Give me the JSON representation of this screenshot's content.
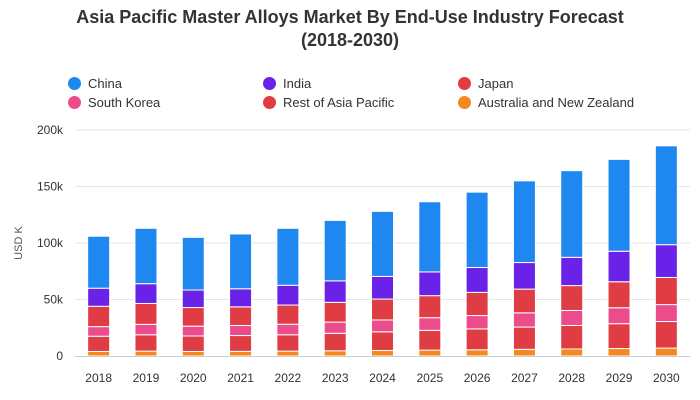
{
  "chart_data": {
    "type": "bar",
    "stacked": true,
    "title": "Asia Pacific Master Alloys Market By End-Use Industry Forecast (2018-2030)",
    "title_lines": [
      "Asia Pacific Master Alloys Market By End-Use Industry Forecast",
      "(2018-2030)"
    ],
    "ylabel": "USD K",
    "ylim": [
      0,
      200000
    ],
    "yticks": [
      0,
      50000,
      100000,
      150000,
      200000
    ],
    "ytick_labels": [
      "0",
      "50k",
      "100k",
      "150k",
      "200k"
    ],
    "grid": true,
    "legend_position": "top",
    "categories": [
      "2018",
      "2019",
      "2020",
      "2021",
      "2022",
      "2023",
      "2024",
      "2025",
      "2026",
      "2027",
      "2028",
      "2029",
      "2030"
    ],
    "series": [
      {
        "name": "Australia and New Zealand",
        "color": "#f5891f",
        "values": [
          4000,
          4300,
          4000,
          4100,
          4300,
          4600,
          4900,
          5200,
          5500,
          5900,
          6200,
          6600,
          7000
        ]
      },
      {
        "name": "Rest of Asia Pacific",
        "color": "#e03c44",
        "values": [
          13500,
          14500,
          13700,
          14000,
          14500,
          15500,
          16500,
          17500,
          18500,
          19700,
          20800,
          22000,
          23500
        ]
      },
      {
        "name": "South Korea",
        "color": "#ec4c8c",
        "values": [
          8500,
          9200,
          8700,
          8900,
          9300,
          9900,
          10500,
          11200,
          11800,
          12600,
          13300,
          14100,
          15000
        ]
      },
      {
        "name": "Japan",
        "color": "#e03c44",
        "values": [
          18000,
          18500,
          16500,
          16500,
          17000,
          17500,
          18500,
          19500,
          20500,
          21000,
          22000,
          23000,
          24000
        ]
      },
      {
        "name": "India",
        "color": "#6a22e8",
        "values": [
          16000,
          17500,
          15500,
          16000,
          17500,
          19000,
          20000,
          21000,
          22000,
          23500,
          25000,
          27000,
          29000
        ]
      },
      {
        "name": "China",
        "color": "#1e88f0",
        "values": [
          46000,
          49000,
          46600,
          48500,
          50400,
          53500,
          57600,
          62100,
          66700,
          72300,
          76700,
          81300,
          87500
        ]
      }
    ]
  },
  "legend": {
    "items": [
      {
        "name": "China",
        "color": "#1e88f0"
      },
      {
        "name": "India",
        "color": "#6a22e8"
      },
      {
        "name": "Japan",
        "color": "#e03c44"
      },
      {
        "name": "South Korea",
        "color": "#ec4c8c"
      },
      {
        "name": "Rest of Asia Pacific",
        "color": "#e03c44"
      },
      {
        "name": "Australia and New Zealand",
        "color": "#f5891f"
      }
    ]
  }
}
